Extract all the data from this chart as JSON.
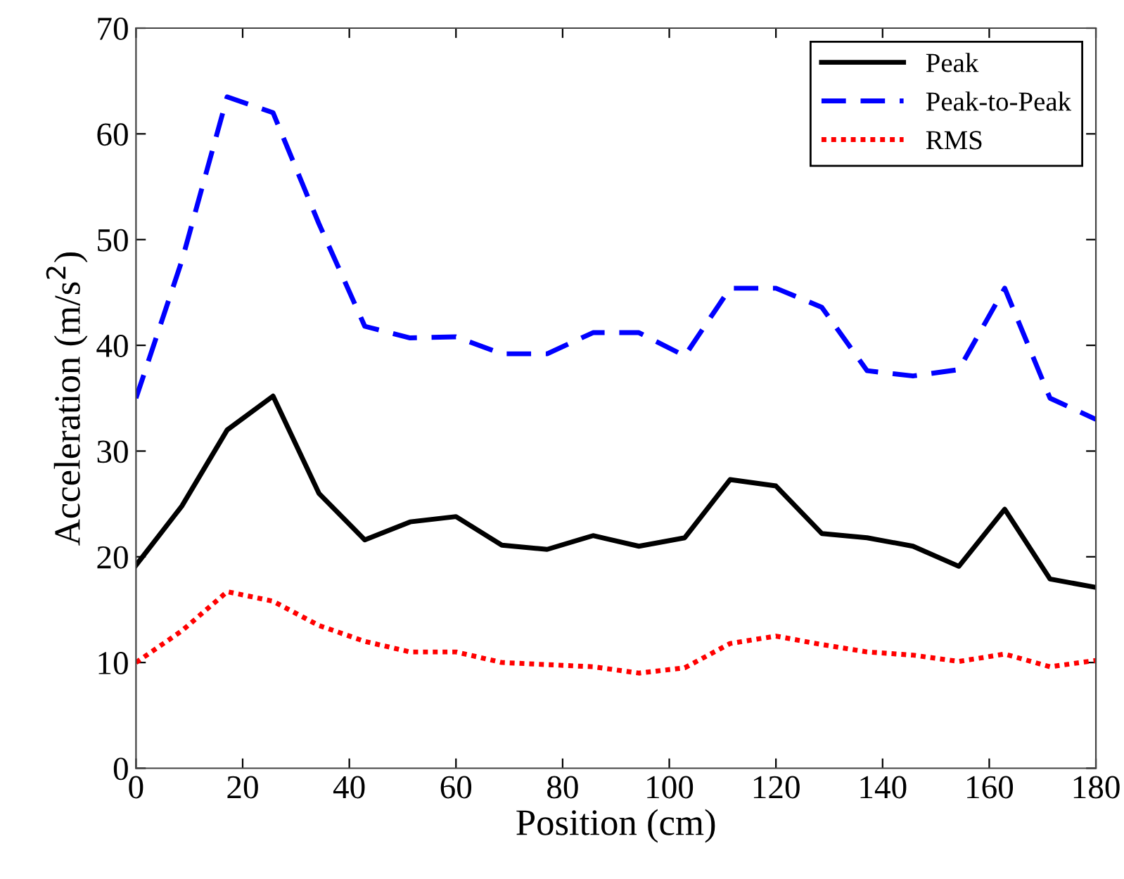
{
  "chart_data": {
    "type": "line",
    "xlabel": "Position (cm)",
    "ylabel": "Acceleration (m/s$^{2}$)",
    "x": [
      0,
      8.6,
      17.1,
      25.7,
      34.3,
      42.9,
      51.4,
      60,
      68.6,
      77.1,
      85.7,
      94.3,
      102.9,
      111.4,
      120,
      128.6,
      137.1,
      145.7,
      154.3,
      162.9,
      171.4,
      180
    ],
    "series": [
      {
        "name": "Peak",
        "color": "#000000",
        "line_style": "solid",
        "values": [
          19.2,
          24.8,
          32.0,
          35.2,
          26.0,
          21.6,
          23.3,
          23.8,
          21.1,
          20.7,
          22.0,
          21.0,
          21.8,
          27.3,
          26.7,
          22.2,
          21.8,
          21.0,
          19.1,
          24.5,
          17.9,
          17.1
        ]
      },
      {
        "name": "Peak-to-Peak",
        "color": "#0000ff",
        "line_style": "dashed",
        "values": [
          35.0,
          48.0,
          63.5,
          62.0,
          51.5,
          41.8,
          40.7,
          40.8,
          39.2,
          39.2,
          41.2,
          41.2,
          39.0,
          45.4,
          45.4,
          43.6,
          37.6,
          37.1,
          37.7,
          45.4,
          35.0,
          33.0
        ]
      },
      {
        "name": "RMS",
        "color": "#ff0000",
        "line_style": "dotted",
        "values": [
          10.0,
          13.0,
          16.7,
          15.8,
          13.5,
          12.0,
          11.0,
          11.0,
          10.0,
          9.8,
          9.6,
          9.0,
          9.5,
          11.8,
          12.5,
          11.7,
          11.0,
          10.7,
          10.1,
          10.8,
          9.6,
          10.2
        ]
      }
    ],
    "xlim": [
      0,
      180
    ],
    "xticks": [
      0,
      20,
      40,
      60,
      80,
      100,
      120,
      140,
      160,
      180
    ],
    "ylim": [
      0,
      70
    ],
    "yticks": [
      0,
      10,
      20,
      30,
      40,
      50,
      60,
      70
    ],
    "grid": false,
    "legend": "top right"
  }
}
